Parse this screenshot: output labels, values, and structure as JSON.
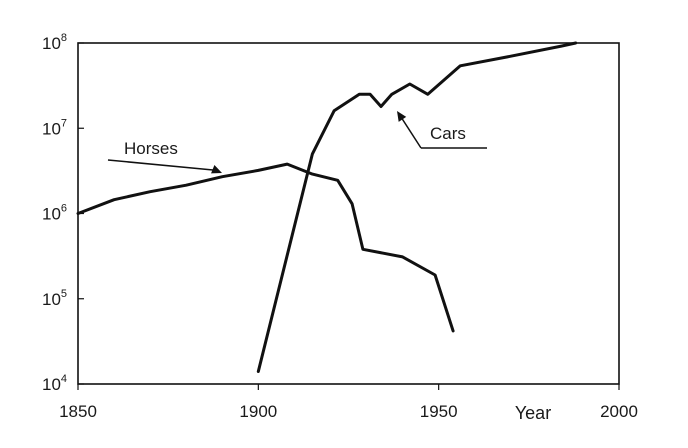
{
  "chart_data": {
    "type": "line",
    "title": "",
    "xlabel": "Year",
    "ylabel": "",
    "y_scale": "log",
    "xlim": [
      1850,
      2000
    ],
    "ylim": [
      10000,
      100000000
    ],
    "grid": false,
    "x_ticks": [
      "1850",
      "1900",
      "1950",
      "2000"
    ],
    "y_ticks": [
      {
        "value": 10000,
        "base": "10",
        "exp": "4"
      },
      {
        "value": 100000,
        "base": "10",
        "exp": "5"
      },
      {
        "value": 1000000,
        "base": "10",
        "exp": "6"
      },
      {
        "value": 10000000,
        "base": "10",
        "exp": "7"
      },
      {
        "value": 100000000,
        "base": "10",
        "exp": "8"
      }
    ],
    "series": [
      {
        "name": "Horses",
        "points": [
          [
            1850,
            1000000
          ],
          [
            1860,
            1450000
          ],
          [
            1870,
            1800000
          ],
          [
            1880,
            2150000
          ],
          [
            1890,
            2700000
          ],
          [
            1900,
            3200000
          ],
          [
            1908,
            3800000
          ],
          [
            1915,
            2900000
          ],
          [
            1922,
            2450000
          ],
          [
            1926,
            1300000
          ],
          [
            1929,
            380000
          ],
          [
            1940,
            310000
          ],
          [
            1949,
            190000
          ],
          [
            1954,
            42000
          ]
        ]
      },
      {
        "name": "Cars",
        "points": [
          [
            1900,
            14000
          ],
          [
            1915,
            5000000
          ],
          [
            1921,
            16000000
          ],
          [
            1928,
            25000000
          ],
          [
            1931,
            25000000
          ],
          [
            1934,
            18000000
          ],
          [
            1937,
            25000000
          ],
          [
            1942,
            33000000
          ],
          [
            1947,
            25000000
          ],
          [
            1956,
            54000000
          ],
          [
            1970,
            70000000
          ],
          [
            1984,
            92000000
          ],
          [
            1988,
            100000000
          ]
        ]
      }
    ],
    "annotations": [
      {
        "text": "Horses",
        "series": "Horses"
      },
      {
        "text": "Cars",
        "series": "Cars"
      }
    ]
  }
}
